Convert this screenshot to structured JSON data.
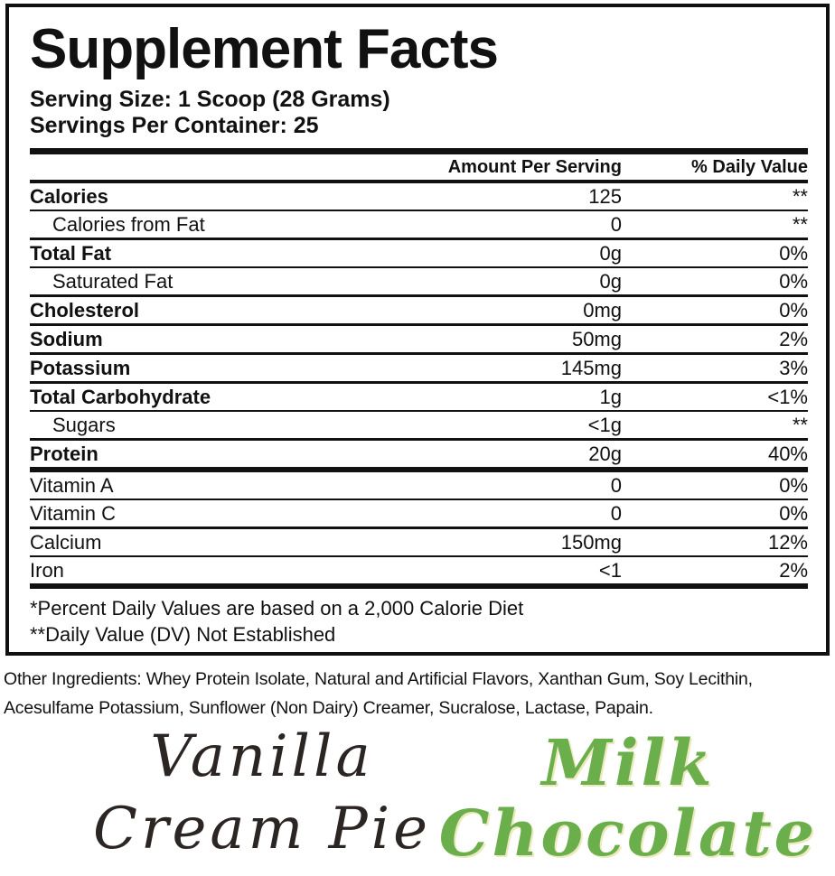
{
  "title": "Supplement Facts",
  "serving": {
    "size": "Serving Size: 1 Scoop (28 Grams)",
    "per_container": "Servings Per Container: 25"
  },
  "table": {
    "col_amount": "Amount Per Serving",
    "col_dv": "% Daily Value",
    "rows": [
      {
        "label": "Calories",
        "amount": "125",
        "dv": "**",
        "style": "bold",
        "sep": "thin"
      },
      {
        "label": "Calories from Fat",
        "amount": "0",
        "dv": "**",
        "style": "indent",
        "sep": "medium"
      },
      {
        "label": "Total Fat",
        "amount": "0g",
        "dv": "0%",
        "style": "bold",
        "sep": "thin"
      },
      {
        "label": "Saturated Fat",
        "amount": "0g",
        "dv": "0%",
        "style": "indent",
        "sep": "medium"
      },
      {
        "label": "Cholesterol",
        "amount": "0mg",
        "dv": "0%",
        "style": "bold",
        "sep": "medium"
      },
      {
        "label": "Sodium",
        "amount": "50mg",
        "dv": "2%",
        "style": "bold",
        "sep": "medium"
      },
      {
        "label": "Potassium",
        "amount": "145mg",
        "dv": "3%",
        "style": "bold",
        "sep": "medium"
      },
      {
        "label": "Total Carbohydrate",
        "amount": "1g",
        "dv": "<1%",
        "style": "bold",
        "sep": "thin"
      },
      {
        "label": "Sugars",
        "amount": "<1g",
        "dv": "**",
        "style": "indent",
        "sep": "medium"
      },
      {
        "label": "Protein",
        "amount": "20g",
        "dv": "40%",
        "style": "bold",
        "sep": "thick"
      },
      {
        "label": "Vitamin A",
        "amount": "0",
        "dv": "0%",
        "style": "plain",
        "sep": "thin"
      },
      {
        "label": "Vitamin C",
        "amount": "0",
        "dv": "0%",
        "style": "plain",
        "sep": "medium"
      },
      {
        "label": "Calcium",
        "amount": "150mg",
        "dv": "12%",
        "style": "plain",
        "sep": "thin"
      },
      {
        "label": "Iron",
        "amount": "<1",
        "dv": "2%",
        "style": "plain",
        "sep": "thick"
      }
    ]
  },
  "footnotes": [
    "*Percent Daily Values are based on a 2,000 Calorie Diet",
    "**Daily Value (DV) Not Established"
  ],
  "other_ingredients": {
    "lines": [
      "Other Ingredients: Whey Protein Isolate, Natural and Artificial Flavors, Xanthan Gum, Soy Lecithin,",
      "Acesulfame Potassium, Sunflower (Non Dairy) Creamer, Sucralose, Lactase, Papain."
    ]
  },
  "flavors": [
    {
      "name": "Vanilla Cream Pie",
      "lines": [
        "Vanilla",
        "Cream Pie"
      ],
      "color": "#2b2523"
    },
    {
      "name": "Milk Chocolate",
      "lines": [
        "Milk",
        "Chocolate"
      ],
      "color": "#6bae4c"
    }
  ],
  "colors": {
    "text": "#111111",
    "rule": "#111111",
    "accent_green": "#6bae4c"
  }
}
